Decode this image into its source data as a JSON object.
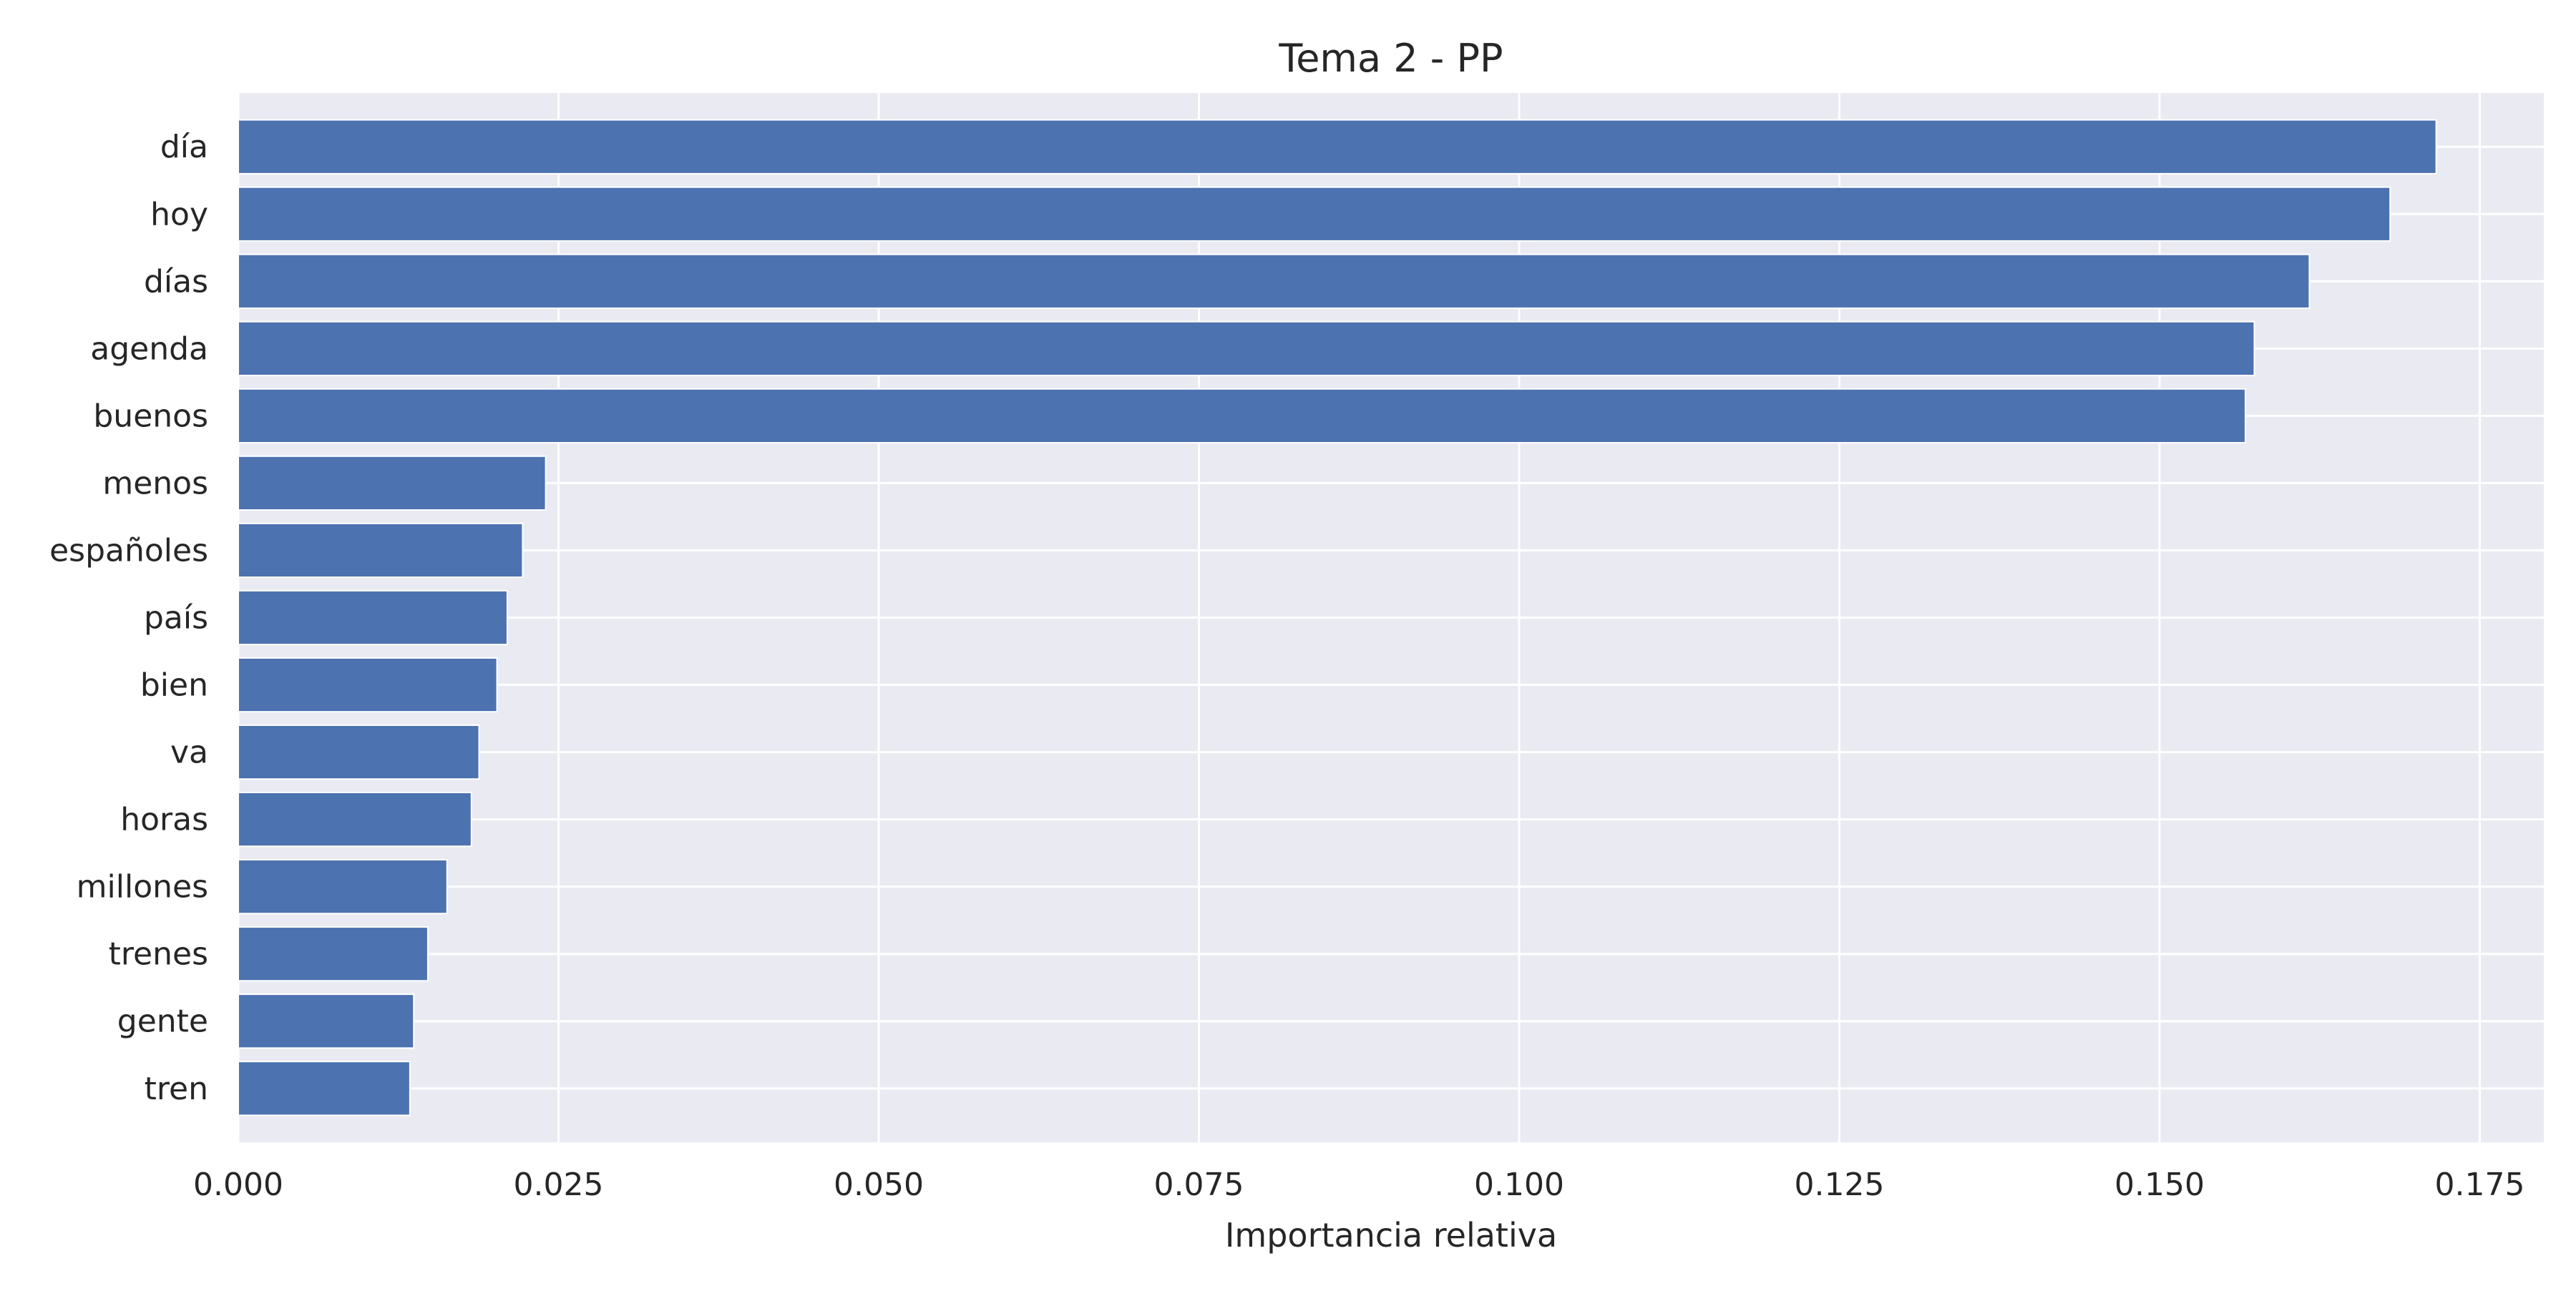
{
  "chart_data": {
    "type": "bar",
    "orientation": "horizontal",
    "title": "Tema 2 - PP",
    "xlabel": "Importancia relativa",
    "ylabel": "",
    "xlim": [
      0,
      0.18
    ],
    "xticks": [
      "0.000",
      "0.025",
      "0.050",
      "0.075",
      "0.100",
      "0.125",
      "0.150",
      "0.175"
    ],
    "grid": true,
    "categories": [
      "día",
      "hoy",
      "días",
      "agenda",
      "buenos",
      "menos",
      "españoles",
      "país",
      "bien",
      "va",
      "horas",
      "millones",
      "trenes",
      "gente",
      "tren"
    ],
    "values": [
      0.1716,
      0.168,
      0.1617,
      0.1574,
      0.1567,
      0.024,
      0.0222,
      0.021,
      0.0202,
      0.0188,
      0.0182,
      0.0163,
      0.0148,
      0.0137,
      0.0134
    ],
    "colors": {
      "bar": "#4c72b0",
      "plot_background": "#eaeaf2",
      "grid": "#ffffff",
      "text": "#262626"
    }
  }
}
